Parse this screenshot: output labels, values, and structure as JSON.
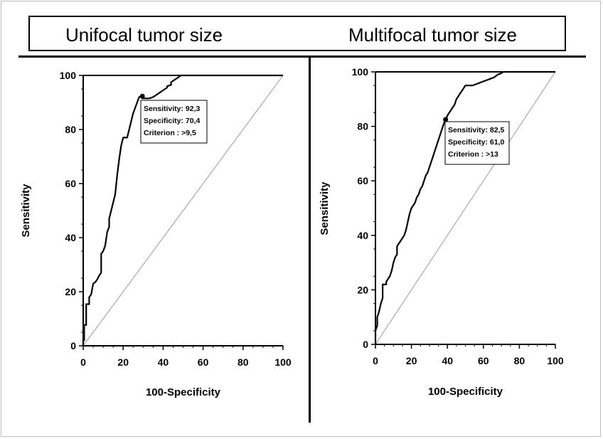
{
  "panel_titles": {
    "left": "Unifocal tumor size",
    "right": "Multifocal tumor size"
  },
  "chart_data": [
    {
      "type": "line",
      "title": "Unifocal tumor size",
      "xlabel": "100-Specificity",
      "ylabel": "Sensitivity",
      "xlim": [
        0,
        100
      ],
      "ylim": [
        0,
        100
      ],
      "xticks": [
        0,
        20,
        40,
        60,
        80,
        100
      ],
      "yticks": [
        0,
        20,
        40,
        60,
        80,
        100
      ],
      "series": [
        {
          "values_type": "roc",
          "x": [
            0,
            0,
            0.5,
            0.5,
            1.5,
            1.5,
            3,
            3,
            4,
            5,
            6,
            7,
            8,
            9,
            9,
            10,
            11,
            12,
            13,
            13,
            14,
            15,
            16,
            17,
            18,
            19,
            20,
            20,
            22,
            23,
            24,
            25,
            26,
            27,
            28,
            29.6,
            29.6,
            31,
            33,
            35,
            37,
            38,
            40,
            42,
            42,
            44,
            44,
            46,
            48,
            49,
            50,
            60,
            70,
            80,
            90,
            100
          ],
          "y": [
            0,
            2,
            2,
            7.7,
            7.7,
            15.4,
            15.4,
            18,
            19,
            23,
            23.5,
            24.5,
            26,
            27,
            34,
            35,
            37,
            42,
            44,
            47,
            50,
            53,
            56,
            63,
            69,
            74,
            77,
            77,
            77,
            80,
            83,
            86,
            88,
            90,
            92,
            92.3,
            91.5,
            91.5,
            91.5,
            92,
            93,
            93.5,
            94.5,
            95.5,
            96,
            96.5,
            97.5,
            98.5,
            99.5,
            100,
            100,
            100,
            100,
            100,
            100,
            100
          ]
        },
        {
          "values_type": "reference",
          "x": [
            0,
            100
          ],
          "y": [
            0,
            100
          ]
        }
      ],
      "annotation": {
        "point": [
          29.6,
          92.3
        ],
        "lines": [
          "Sensitivity: 92,3",
          "Specificity: 70,4",
          "Criterion : >9,5"
        ]
      }
    },
    {
      "type": "line",
      "title": "Multifocal tumor size",
      "xlabel": "100-Specificity",
      "ylabel": "Sensitivity",
      "xlim": [
        0,
        100
      ],
      "ylim": [
        0,
        100
      ],
      "xticks": [
        0,
        20,
        40,
        60,
        80,
        100
      ],
      "yticks": [
        0,
        20,
        40,
        60,
        80,
        100
      ],
      "series": [
        {
          "values_type": "roc",
          "x": [
            0,
            0,
            1,
            1,
            2,
            3,
            4,
            4,
            6,
            6,
            8,
            9,
            10,
            11,
            12,
            12,
            13,
            14,
            15,
            16,
            17,
            18,
            19,
            20,
            21,
            22,
            23,
            24,
            25,
            26,
            27,
            28,
            29,
            30,
            31,
            32,
            33,
            34,
            35,
            36,
            37,
            38,
            39,
            39,
            40,
            41,
            42,
            43,
            44,
            45,
            46,
            47,
            48,
            49,
            50,
            52,
            54,
            56,
            58,
            60,
            62,
            64,
            66,
            68,
            70,
            71,
            72,
            80,
            90,
            100
          ],
          "y": [
            0,
            5,
            7,
            10,
            12,
            15,
            17,
            22,
            22,
            23,
            25,
            27,
            30,
            32,
            33,
            36,
            37,
            38,
            39,
            40,
            42,
            45,
            48,
            50,
            51,
            52,
            54,
            55,
            57,
            58,
            60,
            62,
            63,
            65,
            67,
            69,
            71,
            73,
            75,
            77,
            79,
            81,
            82.5,
            82,
            84,
            85,
            86,
            87,
            88,
            90,
            91,
            92,
            93,
            94,
            95,
            95,
            95,
            95.5,
            96,
            96.5,
            97,
            97.5,
            98,
            99,
            99.5,
            100,
            100,
            100,
            100,
            100
          ]
        },
        {
          "values_type": "reference",
          "x": [
            0,
            100
          ],
          "y": [
            0,
            100
          ]
        }
      ],
      "annotation": {
        "point": [
          39,
          82.5
        ],
        "lines": [
          "Sensitivity: 82,5",
          "Specificity: 61,0",
          "Criterion : >13"
        ]
      }
    }
  ]
}
